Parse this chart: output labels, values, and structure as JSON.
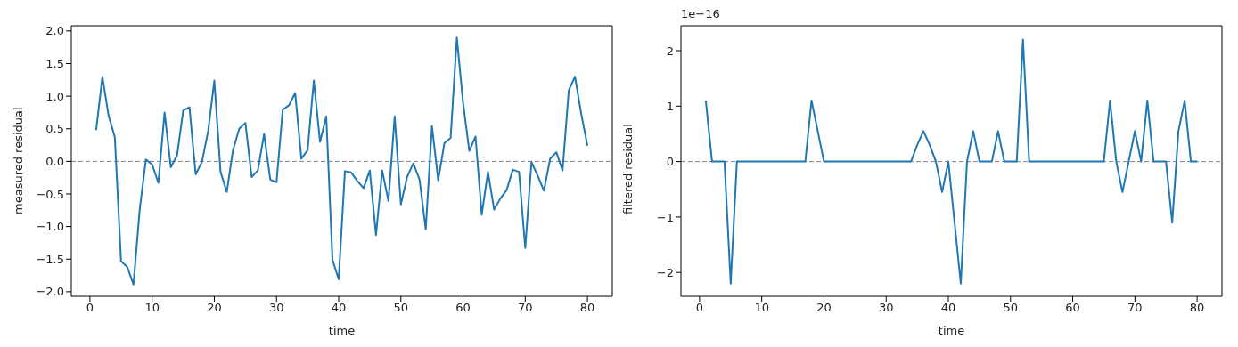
{
  "chart_data": [
    {
      "type": "line",
      "xlabel": "time",
      "ylabel": "measured residual",
      "x": [
        1,
        2,
        3,
        4,
        5,
        6,
        7,
        8,
        9,
        10,
        11,
        12,
        13,
        14,
        15,
        16,
        17,
        18,
        19,
        20,
        21,
        22,
        23,
        24,
        25,
        26,
        27,
        28,
        29,
        30,
        31,
        32,
        33,
        34,
        35,
        36,
        37,
        38,
        39,
        40,
        41,
        42,
        43,
        44,
        45,
        46,
        47,
        48,
        49,
        50,
        51,
        52,
        53,
        54,
        55,
        56,
        57,
        58,
        59,
        60,
        61,
        62,
        63,
        64,
        65,
        66,
        67,
        68,
        69,
        70,
        71,
        72,
        73,
        74,
        75,
        76,
        77,
        78,
        79,
        80
      ],
      "series": [
        {
          "color": "#1f77b4",
          "values": [
            0.48,
            1.3,
            0.7,
            0.37,
            -1.53,
            -1.62,
            -1.89,
            -0.74,
            0.03,
            -0.05,
            -0.33,
            0.75,
            -0.09,
            0.09,
            0.78,
            0.83,
            -0.2,
            -0.01,
            0.46,
            1.24,
            -0.16,
            -0.47,
            0.17,
            0.5,
            0.59,
            -0.24,
            -0.14,
            0.42,
            -0.28,
            -0.32,
            0.79,
            0.86,
            1.05,
            0.04,
            0.17,
            1.24,
            0.3,
            0.69,
            -1.51,
            -1.81,
            -0.15,
            -0.17,
            -0.3,
            -0.41,
            -0.14,
            -1.13,
            -0.14,
            -0.61,
            0.69,
            -0.66,
            -0.24,
            -0.03,
            -0.28,
            -1.04,
            0.54,
            -0.29,
            0.28,
            0.36,
            1.9,
            0.9,
            0.16,
            0.38,
            -0.82,
            -0.16,
            -0.74,
            -0.57,
            -0.44,
            -0.13,
            -0.16,
            -1.33,
            -0.01,
            -0.22,
            -0.45,
            0.04,
            0.14,
            -0.14,
            1.09,
            1.3,
            0.73,
            0.24
          ]
        }
      ],
      "xlim": [
        -3,
        84
      ],
      "xticks": [
        0,
        10,
        20,
        30,
        40,
        50,
        60,
        70,
        80
      ],
      "ylim": [
        -2.07,
        2.08
      ],
      "yticks": [
        {
          "value": -2,
          "label": "−2.0"
        },
        {
          "value": -1.5,
          "label": "−1.5"
        },
        {
          "value": -1,
          "label": "−1.0"
        },
        {
          "value": -0.5,
          "label": "−0.5"
        },
        {
          "value": 0,
          "label": "0.0"
        },
        {
          "value": 0.5,
          "label": "0.5"
        },
        {
          "value": 1,
          "label": "1.0"
        },
        {
          "value": 1.5,
          "label": "1.5"
        },
        {
          "value": 2,
          "label": "2.0"
        }
      ],
      "ref_lines": [
        {
          "axis": "y",
          "value": 0,
          "color": "#808080",
          "line_style": "dashed"
        }
      ],
      "grid": false,
      "legend": false,
      "marker": "none",
      "line_style": "solid"
    },
    {
      "type": "line",
      "xlabel": "time",
      "ylabel": "filtered residual",
      "annotations": [
        "1e−16"
      ],
      "x": [
        1,
        2,
        3,
        4,
        5,
        6,
        7,
        8,
        9,
        10,
        11,
        12,
        13,
        14,
        15,
        16,
        17,
        18,
        19,
        20,
        21,
        22,
        23,
        24,
        25,
        26,
        27,
        28,
        29,
        30,
        31,
        32,
        33,
        34,
        35,
        36,
        37,
        38,
        39,
        40,
        41,
        42,
        43,
        44,
        45,
        46,
        47,
        48,
        49,
        50,
        51,
        52,
        53,
        54,
        55,
        56,
        57,
        58,
        59,
        60,
        61,
        62,
        63,
        64,
        65,
        66,
        67,
        68,
        69,
        70,
        71,
        72,
        73,
        74,
        75,
        76,
        77,
        78,
        79,
        80
      ],
      "series": [
        {
          "color": "#1f77b4",
          "values": [
            1.1,
            0,
            0,
            0,
            -2.2,
            0,
            0,
            0,
            0,
            0,
            0,
            0,
            0,
            0,
            0,
            0,
            0,
            1.1,
            0.55,
            0,
            0,
            0,
            0,
            0,
            0,
            0,
            0,
            0,
            0,
            0,
            0,
            0,
            0,
            0,
            0.3,
            0.55,
            0.3,
            0,
            -0.55,
            0,
            -1.1,
            -2.2,
            0,
            0.55,
            0,
            0,
            0,
            0.55,
            0,
            0,
            0,
            2.2,
            0,
            0,
            0,
            0,
            0,
            0,
            0,
            0,
            0,
            0,
            0,
            0,
            0,
            1.1,
            0,
            -0.55,
            0,
            0.55,
            0,
            1.1,
            0,
            0,
            0,
            -1.1,
            0.55,
            1.1,
            0,
            0
          ]
        }
      ],
      "xlim": [
        -3,
        84
      ],
      "xticks": [
        0,
        10,
        20,
        30,
        40,
        50,
        60,
        70,
        80
      ],
      "ylim": [
        -2.43,
        2.45
      ],
      "yticks": [
        {
          "value": -2,
          "label": "−2"
        },
        {
          "value": -1,
          "label": "−1"
        },
        0,
        1,
        2
      ],
      "ref_lines": [
        {
          "axis": "y",
          "value": 0,
          "color": "#808080",
          "line_style": "dashed"
        }
      ],
      "grid": false,
      "legend": false,
      "marker": "none",
      "line_style": "solid"
    }
  ]
}
